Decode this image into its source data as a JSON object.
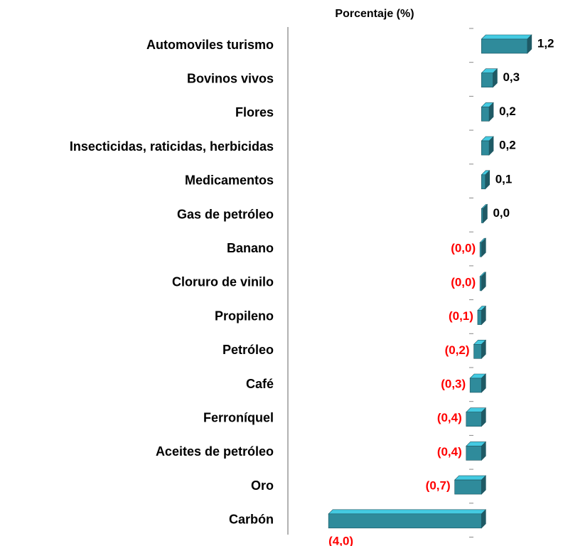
{
  "chart_data": {
    "type": "bar",
    "orientation": "horizontal",
    "title": "Porcentaje (%)",
    "categories": [
      "Automoviles turismo",
      "Bovinos vivos",
      "Flores",
      "Insecticidas, raticidas, herbicidas",
      "Medicamentos",
      "Gas de petróleo",
      "Banano",
      "Cloruro de vinilo",
      "Propileno ",
      "Petróleo",
      "Café",
      "Ferroníquel",
      "Aceites de petróleo",
      "Oro",
      "Carbón"
    ],
    "values": [
      1.2,
      0.3,
      0.2,
      0.2,
      0.1,
      0.04,
      -0.04,
      -0.04,
      -0.1,
      -0.2,
      -0.3,
      -0.4,
      -0.4,
      -0.7,
      -4.0
    ],
    "value_labels": [
      "1,2",
      "0,3",
      "0,2",
      "0,2",
      "0,1",
      "0,0",
      "(0,0)",
      "(0,0)",
      "(0,1)",
      "(0,2)",
      "(0,3)",
      "(0,4)",
      "(0,4)",
      "(0,7)",
      "(4,0)"
    ],
    "color": "#2f8b9b",
    "negative_label_color": "#ff0000",
    "xlim": [
      -4.3,
      1.5
    ]
  }
}
